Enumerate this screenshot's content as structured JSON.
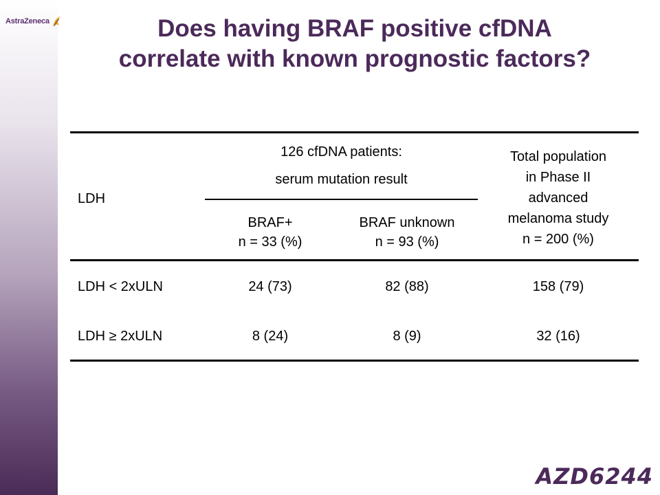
{
  "logo": {
    "text": "AstraZeneca"
  },
  "title": {
    "line1": "Does having BRAF positive cfDNA",
    "line2": "correlate with known prognostic factors?"
  },
  "table": {
    "row_header": "LDH",
    "group_header": {
      "line1": "126 cfDNA patients:",
      "line2": "serum mutation result"
    },
    "total_header": {
      "line1": "Total population",
      "line2": "in Phase II",
      "line3": "advanced",
      "line4": "melanoma study",
      "line5": "n = 200 (%)"
    },
    "subheaders": [
      {
        "line1": "BRAF+",
        "line2": "n = 33 (%)"
      },
      {
        "line1": "BRAF unknown",
        "line2": "n = 93 (%)"
      }
    ],
    "rows": [
      {
        "label": "LDH < 2xULN",
        "braf_pos": "24 (73)",
        "braf_unknown": "82 (88)",
        "total": "158 (79)"
      },
      {
        "label": "LDH ≥ 2xULN",
        "braf_pos": "8 (24)",
        "braf_unknown": "8 (9)",
        "total": "32 (16)"
      }
    ]
  },
  "footer": {
    "brand": "AZD6244"
  },
  "colors": {
    "title": "#4b2a5a",
    "sidebar_dark": "#4a2a56"
  }
}
